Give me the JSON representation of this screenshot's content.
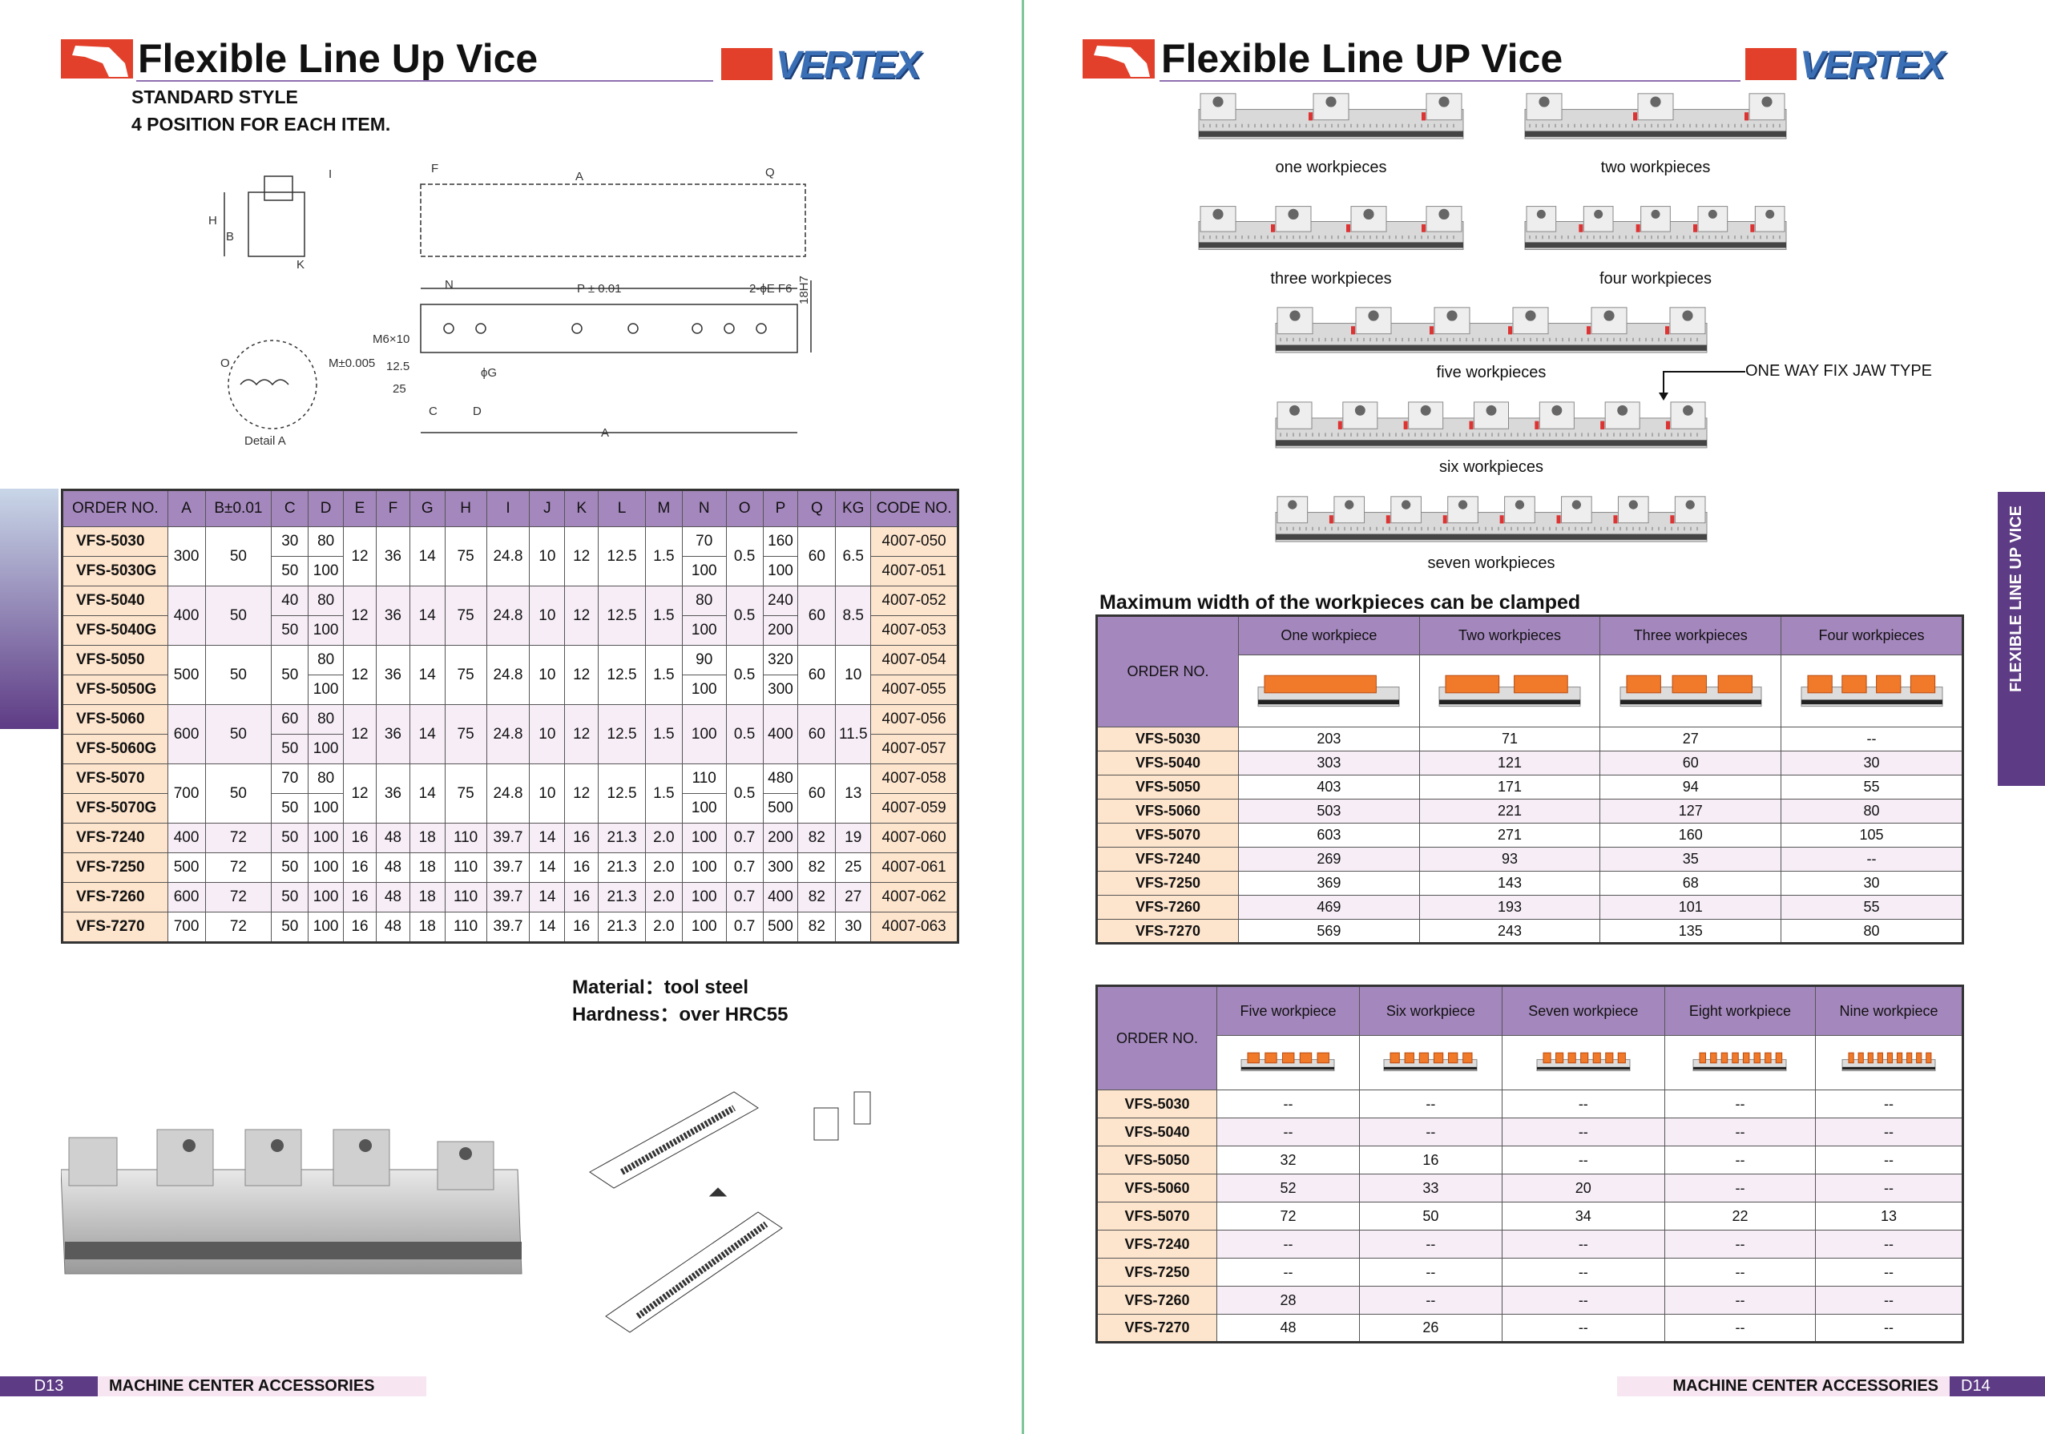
{
  "left_page": {
    "title": "Flexible Line Up Vice",
    "brand": "VERTEX",
    "subtitle_1": "STANDARD STYLE",
    "subtitle_2": "4 POSITION FOR EACH ITEM.",
    "drawing_labels": [
      "F",
      "A",
      "Q",
      "N",
      "P ± 0.01",
      "2-ϕE F6",
      "18H7",
      "M6×10",
      "12.5",
      "25",
      "ϕG",
      "C",
      "D",
      "A",
      "H",
      "B",
      "K",
      "I",
      "Detail A",
      "M±0.005",
      "O"
    ],
    "spec_table": {
      "headers": [
        "ORDER NO.",
        "A",
        "B±0.01",
        "C",
        "D",
        "E",
        "F",
        "G",
        "H",
        "I",
        "J",
        "K",
        "L",
        "M",
        "N",
        "O",
        "P",
        "Q",
        "KG",
        "CODE NO."
      ],
      "rows": [
        [
          "VFS-5030",
          "300",
          "50",
          "30",
          "80",
          "12",
          "36",
          "14",
          "75",
          "24.8",
          "10",
          "12",
          "12.5",
          "1.5",
          "70",
          "0.5",
          "160",
          "60",
          "6.5",
          "4007-050"
        ],
        [
          "VFS-5030G",
          null,
          null,
          "50",
          "100",
          null,
          null,
          null,
          null,
          null,
          null,
          null,
          null,
          null,
          "100",
          null,
          "100",
          null,
          null,
          "4007-051"
        ],
        [
          "VFS-5040",
          "400",
          "50",
          "40",
          "80",
          "12",
          "36",
          "14",
          "75",
          "24.8",
          "10",
          "12",
          "12.5",
          "1.5",
          "80",
          "0.5",
          "240",
          "60",
          "8.5",
          "4007-052"
        ],
        [
          "VFS-5040G",
          null,
          null,
          "50",
          "100",
          null,
          null,
          null,
          null,
          null,
          null,
          null,
          null,
          null,
          "100",
          null,
          "200",
          null,
          null,
          "4007-053"
        ],
        [
          "VFS-5050",
          "500",
          "50",
          "50",
          "80",
          "12",
          "36",
          "14",
          "75",
          "24.8",
          "10",
          "12",
          "12.5",
          "1.5",
          "90",
          "0.5",
          "320",
          "60",
          "10",
          "4007-054"
        ],
        [
          "VFS-5050G",
          null,
          null,
          null,
          "100",
          null,
          null,
          null,
          null,
          null,
          null,
          null,
          null,
          null,
          "100",
          null,
          "300",
          null,
          null,
          "4007-055"
        ],
        [
          "VFS-5060",
          "600",
          "50",
          "60",
          "80",
          "12",
          "36",
          "14",
          "75",
          "24.8",
          "10",
          "12",
          "12.5",
          "1.5",
          "100",
          "0.5",
          "400",
          "60",
          "11.5",
          "4007-056"
        ],
        [
          "VFS-5060G",
          null,
          null,
          "50",
          "100",
          null,
          null,
          null,
          null,
          null,
          null,
          null,
          null,
          null,
          null,
          null,
          null,
          null,
          null,
          "4007-057"
        ],
        [
          "VFS-5070",
          "700",
          "50",
          "70",
          "80",
          "12",
          "36",
          "14",
          "75",
          "24.8",
          "10",
          "12",
          "12.5",
          "1.5",
          "110",
          "0.5",
          "480",
          "60",
          "13",
          "4007-058"
        ],
        [
          "VFS-5070G",
          null,
          null,
          "50",
          "100",
          null,
          null,
          null,
          null,
          null,
          null,
          null,
          null,
          null,
          "100",
          null,
          "500",
          null,
          null,
          "4007-059"
        ],
        [
          "VFS-7240",
          "400",
          "72",
          "50",
          "100",
          "16",
          "48",
          "18",
          "110",
          "39.7",
          "14",
          "16",
          "21.3",
          "2.0",
          "100",
          "0.7",
          "200",
          "82",
          "19",
          "4007-060"
        ],
        [
          "VFS-7250",
          "500",
          "72",
          "50",
          "100",
          "16",
          "48",
          "18",
          "110",
          "39.7",
          "14",
          "16",
          "21.3",
          "2.0",
          "100",
          "0.7",
          "300",
          "82",
          "25",
          "4007-061"
        ],
        [
          "VFS-7260",
          "600",
          "72",
          "50",
          "100",
          "16",
          "48",
          "18",
          "110",
          "39.7",
          "14",
          "16",
          "21.3",
          "2.0",
          "100",
          "0.7",
          "400",
          "82",
          "27",
          "4007-062"
        ],
        [
          "VFS-7270",
          "700",
          "72",
          "50",
          "100",
          "16",
          "48",
          "18",
          "110",
          "39.7",
          "14",
          "16",
          "21.3",
          "2.0",
          "100",
          "0.7",
          "500",
          "82",
          "30",
          "4007-063"
        ]
      ]
    },
    "material": "Material：tool steel",
    "hardness": "Hardness：over HRC55",
    "footer": {
      "page": "D13",
      "section": "MACHINE CENTER ACCESSORIES"
    }
  },
  "right_page": {
    "title": "Flexible Line UP Vice",
    "brand": "VERTEX",
    "side_tab": "FLEXIBLE LINE UP VICE",
    "workpiece_captions": [
      "one workpieces",
      "two workpieces",
      "three workpieces",
      "four workpieces",
      "five workpieces",
      "six workpieces",
      "seven workpieces"
    ],
    "jaw_note": "ONE WAY FIX JAW TYPE",
    "table_title": "Maximum width of the workpieces can be clamped",
    "table1": {
      "order_header": "ORDER NO.",
      "headers": [
        "One workpiece",
        "Two workpieces",
        "Three workpieces",
        "Four workpieces"
      ],
      "rows": [
        [
          "VFS-5030",
          "203",
          "71",
          "27",
          "--"
        ],
        [
          "VFS-5040",
          "303",
          "121",
          "60",
          "30"
        ],
        [
          "VFS-5050",
          "403",
          "171",
          "94",
          "55"
        ],
        [
          "VFS-5060",
          "503",
          "221",
          "127",
          "80"
        ],
        [
          "VFS-5070",
          "603",
          "271",
          "160",
          "105"
        ],
        [
          "VFS-7240",
          "269",
          "93",
          "35",
          "--"
        ],
        [
          "VFS-7250",
          "369",
          "143",
          "68",
          "30"
        ],
        [
          "VFS-7260",
          "469",
          "193",
          "101",
          "55"
        ],
        [
          "VFS-7270",
          "569",
          "243",
          "135",
          "80"
        ]
      ]
    },
    "table2": {
      "order_header": "ORDER NO.",
      "headers": [
        "Five workpiece",
        "Six workpiece",
        "Seven workpiece",
        "Eight workpiece",
        "Nine workpiece"
      ],
      "rows": [
        [
          "VFS-5030",
          "--",
          "--",
          "--",
          "--",
          "--"
        ],
        [
          "VFS-5040",
          "--",
          "--",
          "--",
          "--",
          "--"
        ],
        [
          "VFS-5050",
          "32",
          "16",
          "--",
          "--",
          "--"
        ],
        [
          "VFS-5060",
          "52",
          "33",
          "20",
          "--",
          "--"
        ],
        [
          "VFS-5070",
          "72",
          "50",
          "34",
          "22",
          "13"
        ],
        [
          "VFS-7240",
          "--",
          "--",
          "--",
          "--",
          "--"
        ],
        [
          "VFS-7250",
          "--",
          "--",
          "--",
          "--",
          "--"
        ],
        [
          "VFS-7260",
          "28",
          "--",
          "--",
          "--",
          "--"
        ],
        [
          "VFS-7270",
          "48",
          "26",
          "--",
          "--",
          "--"
        ]
      ]
    },
    "footer": {
      "page": "D14",
      "section": "MACHINE CENTER ACCESSORIES"
    }
  },
  "colors": {
    "header_purple": "#a487bd",
    "side_purple": "#5e3b85",
    "peach": "#fde4cc",
    "row_pink": "#f6edf6",
    "logo_red": "#e2402a",
    "brand_blue": "#3a6fb5",
    "workpiece_orange": "#f07a2a",
    "divider_green": "#7fc79a"
  }
}
